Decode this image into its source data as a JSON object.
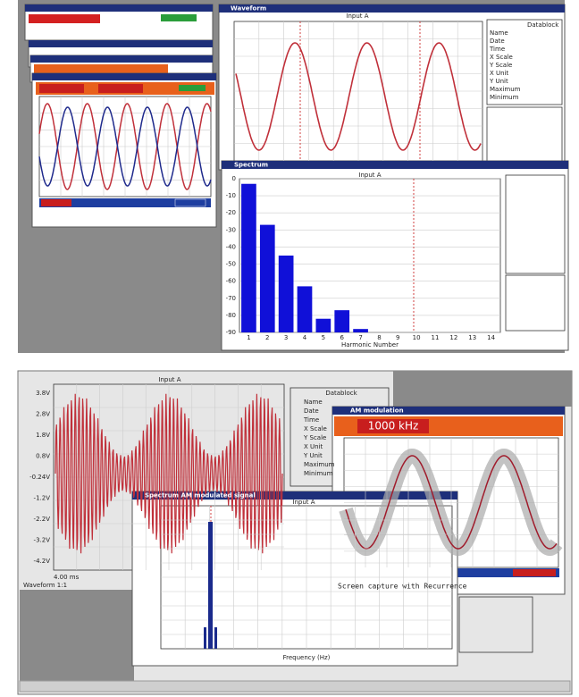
{
  "top": {
    "waveform": {
      "title": "Waveform",
      "plot_title": "Input A"
    },
    "datablock": {
      "title": "Datablock",
      "rows": [
        "Name",
        "Date",
        "Time",
        "X Scale",
        "Y Scale",
        "X Unit",
        "Y Unit",
        "Maximum",
        "Minimum"
      ]
    },
    "spectrum": {
      "title": "Spectrum",
      "plot_title": "Input A",
      "x_label": "Harmonic Number",
      "harmonics": [
        "1",
        "2",
        "3",
        "4",
        "5",
        "6",
        "7",
        "8",
        "9",
        "10",
        "11",
        "12",
        "13",
        "14"
      ],
      "levels": [
        -3,
        -27,
        -45,
        -63,
        -82,
        -77,
        -88
      ],
      "ylim": [
        -90,
        0
      ],
      "yticks": [
        0,
        -10,
        -20,
        -30,
        -40,
        -50,
        -60,
        -70,
        -80,
        -90
      ]
    }
  },
  "bottom": {
    "waveform": {
      "plot_title": "Input A",
      "yticks": [
        "3.8V",
        "2.8V",
        "1.8V",
        "0.8V",
        "-0.24V",
        "-1.2V",
        "-2.2V",
        "-3.2V",
        "-4.2V"
      ],
      "x_label": "4.00 ms",
      "status": "Waveform 1:1"
    },
    "datablock": {
      "title": "Datablock",
      "rows": [
        "Name",
        "Date",
        "Time",
        "X Scale",
        "Y Scale",
        "X Unit",
        "Y Unit",
        "Maximum",
        "Minimum"
      ]
    },
    "am": {
      "title": "AM modulation",
      "readout": "1000 kHz",
      "caption": "Screen capture with Recurrence"
    },
    "spectrum": {
      "title": "Spectrum AM modulated signal",
      "plot_title": "Input A",
      "x_label": "Frequency (Hz)"
    }
  }
}
